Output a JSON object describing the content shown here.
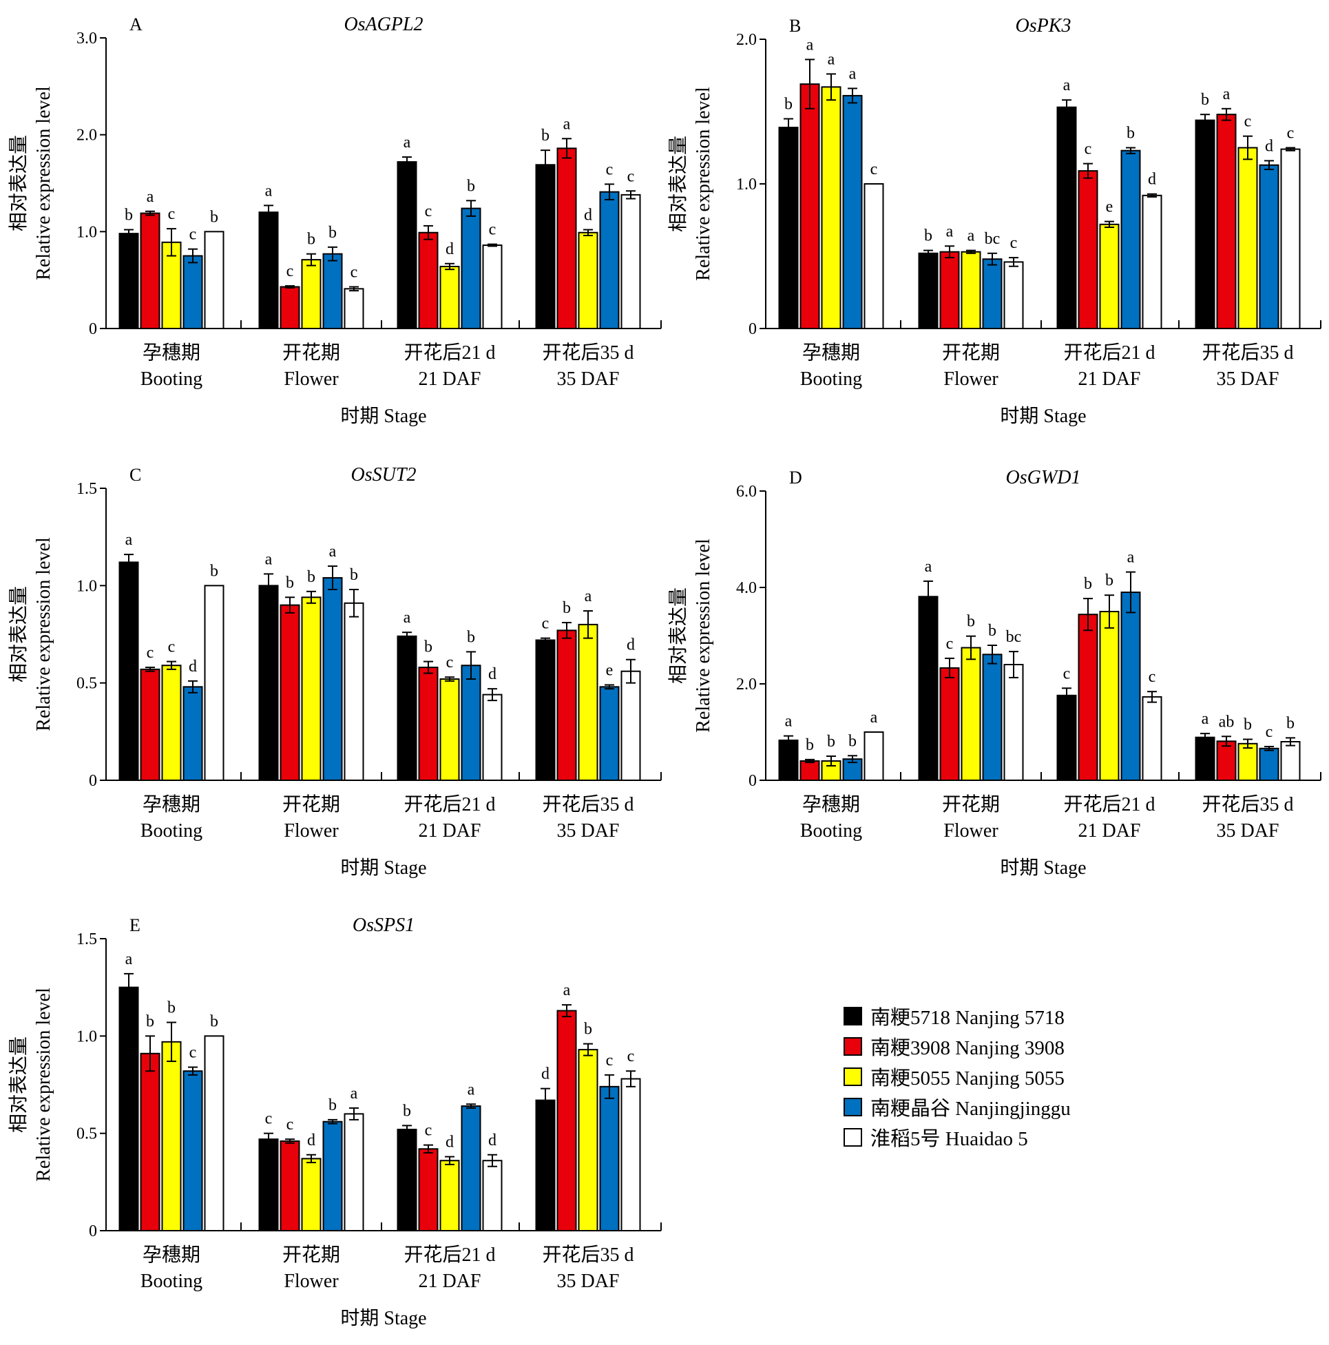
{
  "stage_label": "时期 Stage",
  "y_label_cn": "相对表达量",
  "y_label_en": "Relative expression level",
  "categories": [
    {
      "cn": "孕穗期",
      "en": "Booting"
    },
    {
      "cn": "开花期",
      "en": "Flower"
    },
    {
      "cn": "开花后21 d",
      "en": "21 DAF"
    },
    {
      "cn": "开花后35 d",
      "en": "35 DAF"
    }
  ],
  "legend": [
    {
      "label": "南粳5718 Nanjing 5718",
      "color": "#000000"
    },
    {
      "label": "南粳3908 Nanjing 3908",
      "color": "#e8000b"
    },
    {
      "label": "南粳5055 Nanjing 5055",
      "color": "#ffff00"
    },
    {
      "label": "南粳晶谷 Nanjingjinggu",
      "color": "#0070c0"
    },
    {
      "label": "淮稻5号 Huaidao 5",
      "color": "#ffffff"
    }
  ],
  "chart_data": [
    {
      "type": "bar",
      "panel": "A",
      "title": "OsAGPL2",
      "categories": [
        "孕穗期 Booting",
        "开花期 Flower",
        "开花后21 d 21 DAF",
        "开花后35 d 35 DAF"
      ],
      "ylim": [
        0,
        3.0
      ],
      "yticks": [
        "0",
        "1.0",
        "2.0",
        "3.0"
      ],
      "ytick_values": [
        0,
        1,
        2,
        3
      ],
      "xlabel": "时期 Stage",
      "ylabel": "相对表达量 Relative expression level",
      "series": [
        {
          "name": "南粳5718 Nanjing 5718",
          "values": [
            0.98,
            1.2,
            1.72,
            1.69
          ],
          "errors": [
            0.04,
            0.07,
            0.05,
            0.15
          ],
          "letters": [
            "b",
            "a",
            "a",
            "b"
          ]
        },
        {
          "name": "南粳3908 Nanjing 3908",
          "values": [
            1.19,
            0.43,
            0.99,
            1.86
          ],
          "errors": [
            0.02,
            0.01,
            0.07,
            0.1
          ],
          "letters": [
            "a",
            "c",
            "c",
            "a"
          ]
        },
        {
          "name": "南粳5055 Nanjing 5055",
          "values": [
            0.89,
            0.71,
            0.64,
            0.99
          ],
          "errors": [
            0.14,
            0.06,
            0.03,
            0.03
          ],
          "letters": [
            "c",
            "b",
            "d",
            "d"
          ]
        },
        {
          "name": "南粳晶谷 Nanjingjinggu",
          "values": [
            0.75,
            0.77,
            1.24,
            1.41
          ],
          "errors": [
            0.07,
            0.07,
            0.08,
            0.08
          ],
          "letters": [
            "c",
            "b",
            "b",
            "c"
          ]
        },
        {
          "name": "淮稻5号 Huaidao 5",
          "values": [
            1.0,
            0.41,
            0.86,
            1.38
          ],
          "errors": [
            0,
            0.02,
            0.01,
            0.04
          ],
          "letters": [
            "b",
            "c",
            "c",
            "c"
          ]
        }
      ]
    },
    {
      "type": "bar",
      "panel": "B",
      "title": "OsPK3",
      "categories": [
        "孕穗期 Booting",
        "开花期 Flower",
        "开花后21 d 21 DAF",
        "开花后35 d 35 DAF"
      ],
      "ylim": [
        0,
        2.0
      ],
      "yticks": [
        "0",
        "1.0",
        "2.0"
      ],
      "ytick_values": [
        0,
        1,
        2
      ],
      "xlabel": "时期 Stage",
      "ylabel": "相对表达量 Relative expression level",
      "series": [
        {
          "name": "南粳5718 Nanjing 5718",
          "values": [
            1.39,
            0.52,
            1.53,
            1.44
          ],
          "errors": [
            0.06,
            0.02,
            0.05,
            0.04
          ],
          "letters": [
            "b",
            "b",
            "a",
            "b"
          ]
        },
        {
          "name": "南粳3908 Nanjing 3908",
          "values": [
            1.69,
            0.53,
            1.09,
            1.48
          ],
          "errors": [
            0.17,
            0.04,
            0.05,
            0.04
          ],
          "letters": [
            "a",
            "a",
            "c",
            "a"
          ]
        },
        {
          "name": "南粳5055 Nanjing 5055",
          "values": [
            1.67,
            0.53,
            0.72,
            1.25
          ],
          "errors": [
            0.09,
            0.01,
            0.02,
            0.08
          ],
          "letters": [
            "a",
            "a",
            "e",
            "c"
          ]
        },
        {
          "name": "南粳晶谷 Nanjingjinggu",
          "values": [
            1.61,
            0.48,
            1.23,
            1.13
          ],
          "errors": [
            0.05,
            0.04,
            0.02,
            0.03
          ],
          "letters": [
            "a",
            "bc",
            "b",
            "d"
          ]
        },
        {
          "name": "淮稻5号 Huaidao 5",
          "values": [
            1.0,
            0.46,
            0.92,
            1.24
          ],
          "errors": [
            0,
            0.03,
            0.01,
            0.01
          ],
          "letters": [
            "c",
            "c",
            "d",
            "c"
          ]
        }
      ]
    },
    {
      "type": "bar",
      "panel": "C",
      "title": "OsSUT2",
      "categories": [
        "孕穗期 Booting",
        "开花期 Flower",
        "开花后21 d 21 DAF",
        "开花后35 d 35 DAF"
      ],
      "ylim": [
        0,
        1.5
      ],
      "yticks": [
        "0",
        "0.5",
        "1.0",
        "1.5"
      ],
      "ytick_values": [
        0,
        0.5,
        1.0,
        1.5
      ],
      "xlabel": "时期 Stage",
      "ylabel": "相对表达量 Relative expression level",
      "series": [
        {
          "name": "南粳5718 Nanjing 5718",
          "values": [
            1.12,
            1.0,
            0.74,
            0.72
          ],
          "errors": [
            0.04,
            0.06,
            0.02,
            0.01
          ],
          "letters": [
            "a",
            "a",
            "a",
            "c"
          ]
        },
        {
          "name": "南粳3908 Nanjing 3908",
          "values": [
            0.57,
            0.9,
            0.58,
            0.77
          ],
          "errors": [
            0.01,
            0.04,
            0.03,
            0.04
          ],
          "letters": [
            "c",
            "b",
            "b",
            "b"
          ]
        },
        {
          "name": "南粳5055 Nanjing 5055",
          "values": [
            0.59,
            0.94,
            0.52,
            0.8
          ],
          "errors": [
            0.02,
            0.03,
            0.01,
            0.07
          ],
          "letters": [
            "c",
            "b",
            "c",
            "a"
          ]
        },
        {
          "name": "南粳晶谷 Nanjingjinggu",
          "values": [
            0.48,
            1.04,
            0.59,
            0.48
          ],
          "errors": [
            0.03,
            0.06,
            0.07,
            0.01
          ],
          "letters": [
            "d",
            "a",
            "b",
            "e"
          ]
        },
        {
          "name": "淮稻5号 Huaidao 5",
          "values": [
            1.0,
            0.91,
            0.44,
            0.56
          ],
          "errors": [
            0,
            0.07,
            0.03,
            0.06
          ],
          "letters": [
            "b",
            "b",
            "d",
            "d"
          ]
        }
      ]
    },
    {
      "type": "bar",
      "panel": "D",
      "title": "OsGWD1",
      "categories": [
        "孕穗期 Booting",
        "开花期 Flower",
        "开花后21 d 21 DAF",
        "开花后35 d 35 DAF"
      ],
      "ylim": [
        0,
        6.0
      ],
      "yticks": [
        "0",
        "2.0",
        "4.0",
        "6.0"
      ],
      "ytick_values": [
        0,
        2,
        4,
        6
      ],
      "xlabel": "时期 Stage",
      "ylabel": "相对表达量 Relative expression level",
      "series": [
        {
          "name": "南粳5718 Nanjing 5718",
          "values": [
            0.83,
            3.81,
            1.76,
            0.89
          ],
          "errors": [
            0.09,
            0.32,
            0.15,
            0.08
          ],
          "letters": [
            "a",
            "a",
            "c",
            "a"
          ]
        },
        {
          "name": "南粳3908 Nanjing 3908",
          "values": [
            0.4,
            2.33,
            3.44,
            0.81
          ],
          "errors": [
            0.03,
            0.2,
            0.33,
            0.1
          ],
          "letters": [
            "b",
            "c",
            "b",
            "ab"
          ]
        },
        {
          "name": "南粳5055 Nanjing 5055",
          "values": [
            0.4,
            2.75,
            3.5,
            0.76
          ],
          "errors": [
            0.1,
            0.24,
            0.34,
            0.09
          ],
          "letters": [
            "b",
            "b",
            "b",
            "b"
          ]
        },
        {
          "name": "南粳晶谷 Nanjingjinggu",
          "values": [
            0.44,
            2.61,
            3.9,
            0.66
          ],
          "errors": [
            0.07,
            0.19,
            0.42,
            0.04
          ],
          "letters": [
            "b",
            "b",
            "a",
            "c"
          ]
        },
        {
          "name": "淮稻5号 Huaidao 5",
          "values": [
            1.0,
            2.4,
            1.73,
            0.8
          ],
          "errors": [
            0,
            0.27,
            0.11,
            0.08
          ],
          "letters": [
            "a",
            "bc",
            "c",
            "b"
          ]
        }
      ]
    },
    {
      "type": "bar",
      "panel": "E",
      "title": "OsSPS1",
      "categories": [
        "孕穗期 Booting",
        "开花期 Flower",
        "开花后21 d 21 DAF",
        "开花后35 d 35 DAF"
      ],
      "ylim": [
        0,
        1.5
      ],
      "yticks": [
        "0",
        "0.5",
        "1.0",
        "1.5"
      ],
      "ytick_values": [
        0,
        0.5,
        1.0,
        1.5
      ],
      "xlabel": "时期 Stage",
      "ylabel": "相对表达量 Relative expression level",
      "series": [
        {
          "name": "南粳5718 Nanjing 5718",
          "values": [
            1.25,
            0.47,
            0.52,
            0.67
          ],
          "errors": [
            0.07,
            0.03,
            0.02,
            0.06
          ],
          "letters": [
            "a",
            "c",
            "b",
            "d"
          ]
        },
        {
          "name": "南粳3908 Nanjing 3908",
          "values": [
            0.91,
            0.46,
            0.42,
            1.13
          ],
          "errors": [
            0.09,
            0.01,
            0.02,
            0.03
          ],
          "letters": [
            "b",
            "c",
            "c",
            "a"
          ]
        },
        {
          "name": "南粳5055 Nanjing 5055",
          "values": [
            0.97,
            0.37,
            0.36,
            0.93
          ],
          "errors": [
            0.1,
            0.02,
            0.02,
            0.03
          ],
          "letters": [
            "b",
            "d",
            "d",
            "b"
          ]
        },
        {
          "name": "南粳晶谷 Nanjingjinggu",
          "values": [
            0.82,
            0.56,
            0.64,
            0.74
          ],
          "errors": [
            0.02,
            0.01,
            0.01,
            0.06
          ],
          "letters": [
            "c",
            "b",
            "a",
            "c"
          ]
        },
        {
          "name": "淮稻5号 Huaidao 5",
          "values": [
            1.0,
            0.6,
            0.36,
            0.78
          ],
          "errors": [
            0,
            0.03,
            0.03,
            0.04
          ],
          "letters": [
            "b",
            "a",
            "d",
            "c"
          ]
        }
      ]
    }
  ]
}
